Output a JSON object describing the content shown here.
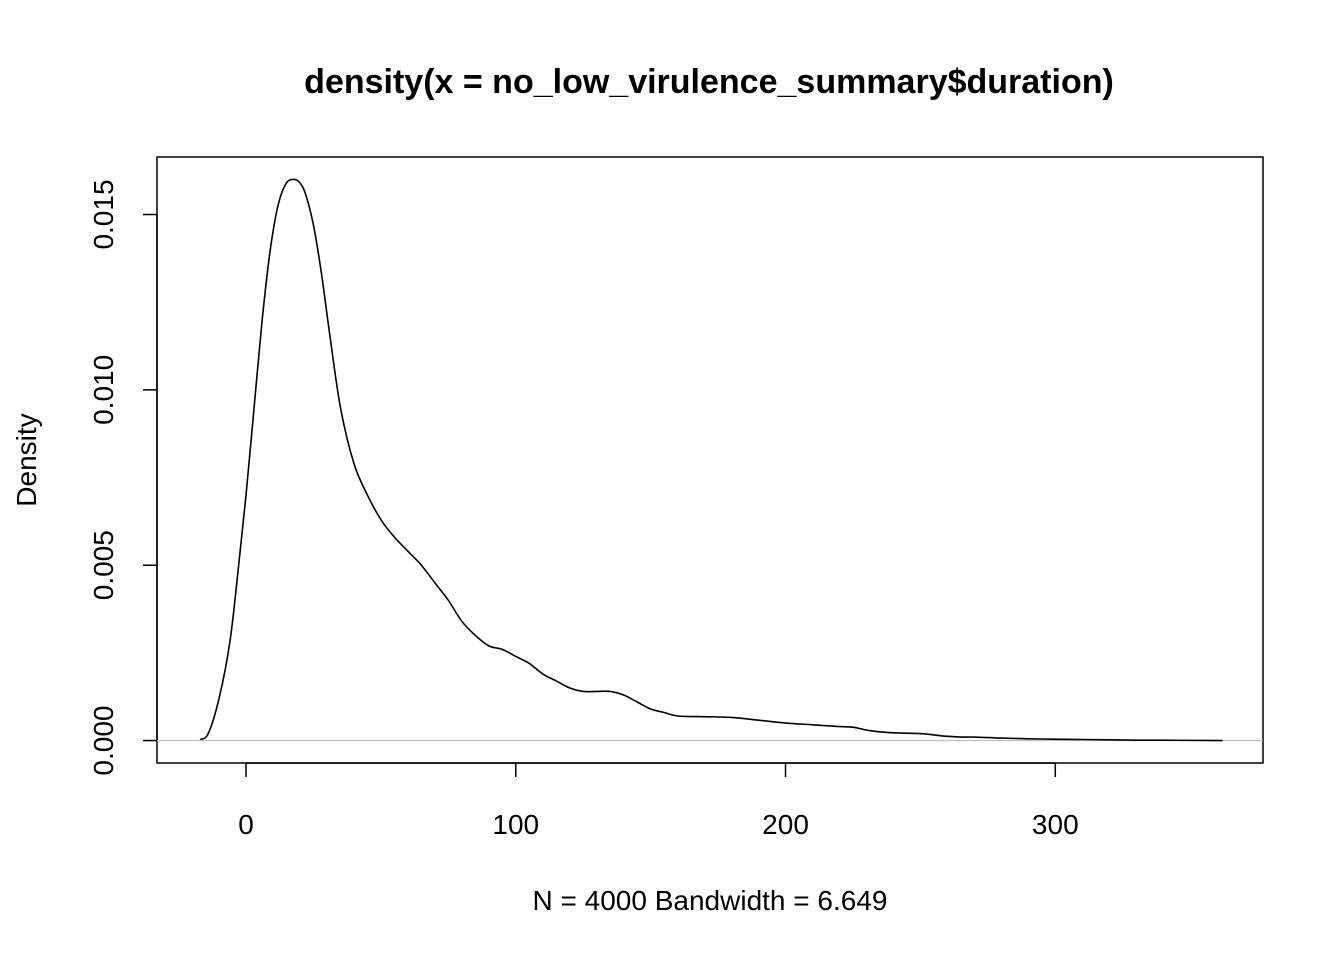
{
  "chart_data": {
    "type": "line",
    "title": "density(x = no_low_virulence_summary$duration)",
    "xlabel": "N = 4000   Bandwidth = 6.649",
    "ylabel": "Density",
    "xlim": [
      -33,
      377
    ],
    "ylim": [
      -0.00064,
      0.01664
    ],
    "x_ticks": [
      0,
      100,
      200,
      300
    ],
    "x_tick_labels": [
      "0",
      "100",
      "200",
      "300"
    ],
    "y_ticks": [
      0.0,
      0.005,
      0.01,
      0.015
    ],
    "y_tick_labels": [
      "0.000",
      "0.005",
      "0.010",
      "0.015"
    ],
    "grid": false,
    "legend": "none",
    "baseline_y": 0,
    "series": [
      {
        "x": [
          -17,
          -14,
          -10,
          -6,
          -3,
          0,
          3,
          6,
          9,
          12,
          15,
          18,
          20,
          22,
          25,
          28,
          31,
          35,
          40,
          45,
          50,
          55,
          60,
          65,
          70,
          75,
          80,
          85,
          90,
          95,
          100,
          105,
          110,
          115,
          120,
          125,
          130,
          135,
          140,
          145,
          150,
          155,
          160,
          170,
          180,
          190,
          200,
          210,
          220,
          225,
          230,
          235,
          240,
          250,
          255,
          260,
          265,
          270,
          280,
          290,
          300,
          310,
          320,
          330,
          340,
          350,
          362
        ],
        "y": [
          3e-05,
          0.0002,
          0.0012,
          0.0028,
          0.0048,
          0.007,
          0.0095,
          0.012,
          0.014,
          0.0153,
          0.0159,
          0.016,
          0.0159,
          0.0156,
          0.0147,
          0.0133,
          0.0116,
          0.0095,
          0.0079,
          0.007,
          0.0063,
          0.0058,
          0.0054,
          0.005,
          0.0045,
          0.004,
          0.0034,
          0.003,
          0.0027,
          0.0026,
          0.0024,
          0.0022,
          0.0019,
          0.0017,
          0.0015,
          0.0014,
          0.0014,
          0.0014,
          0.0013,
          0.0011,
          0.0009,
          0.0008,
          0.0007,
          0.00068,
          0.00066,
          0.00058,
          0.0005,
          0.00045,
          0.0004,
          0.00038,
          0.0003,
          0.00025,
          0.00022,
          0.0002,
          0.00016,
          0.00012,
          0.0001,
          0.0001,
          7e-05,
          5e-05,
          4e-05,
          3e-05,
          2e-05,
          1e-05,
          1e-05,
          5e-06,
          0.0
        ]
      }
    ]
  }
}
